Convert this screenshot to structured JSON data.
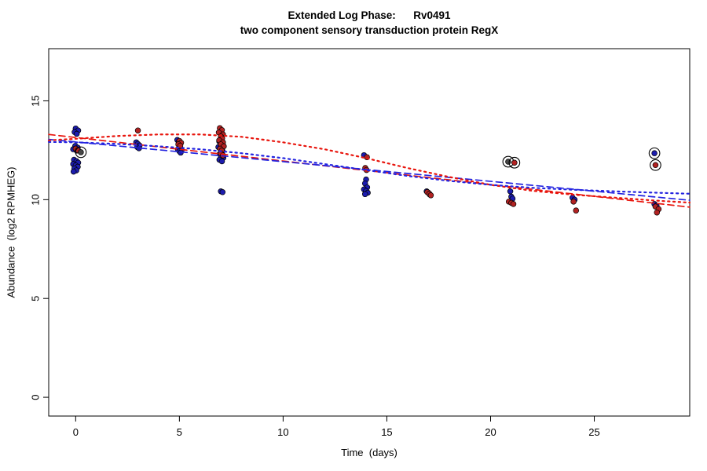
{
  "chart_data": {
    "type": "scatter",
    "title": "Extended Log Phase:      Rv0491",
    "subtitle": "two component sensory transduction protein RegX",
    "xlabel": "Time  (days)",
    "ylabel": "Abundance  (log2 RPMHEG)",
    "xlim": [
      -1.3,
      29.6
    ],
    "ylim": [
      -0.95,
      17.64
    ],
    "xticks": [
      0,
      5,
      10,
      15,
      20,
      25
    ],
    "yticks": [
      0,
      5,
      10,
      15
    ],
    "grid": false,
    "legend": "none",
    "series": [
      {
        "name": "blue-condition",
        "color": "#1c1cae",
        "marker": "filled-circle",
        "points": [
          [
            0.0,
            13.6
          ],
          [
            0.12,
            13.5
          ],
          [
            -0.05,
            13.42
          ],
          [
            0.05,
            13.33
          ],
          [
            -0.02,
            12.72
          ],
          [
            0.1,
            12.63
          ],
          [
            -0.12,
            12.55
          ],
          [
            0.05,
            12.48
          ],
          [
            -0.08,
            12.02
          ],
          [
            0.04,
            11.95
          ],
          [
            0.12,
            11.87
          ],
          [
            -0.12,
            11.8
          ],
          [
            0.0,
            11.73
          ],
          [
            0.1,
            11.66
          ],
          [
            -0.06,
            11.58
          ],
          [
            0.03,
            11.48
          ],
          [
            -0.1,
            11.42
          ],
          [
            2.92,
            12.9
          ],
          [
            3.0,
            12.82
          ],
          [
            3.08,
            12.74
          ],
          [
            2.97,
            12.66
          ],
          [
            3.05,
            12.6
          ],
          [
            4.9,
            13.02
          ],
          [
            4.97,
            12.92
          ],
          [
            5.05,
            12.62
          ],
          [
            4.93,
            12.55
          ],
          [
            5.1,
            12.5
          ],
          [
            5.0,
            12.45
          ],
          [
            5.06,
            12.38
          ],
          [
            6.92,
            12.95
          ],
          [
            7.0,
            12.86
          ],
          [
            7.1,
            12.76
          ],
          [
            6.88,
            12.66
          ],
          [
            7.02,
            12.56
          ],
          [
            7.08,
            12.46
          ],
          [
            6.95,
            12.32
          ],
          [
            7.0,
            12.22
          ],
          [
            7.12,
            12.12
          ],
          [
            6.93,
            12.02
          ],
          [
            7.05,
            11.94
          ],
          [
            7.0,
            10.42
          ],
          [
            7.08,
            10.38
          ],
          [
            13.9,
            12.25
          ],
          [
            14.0,
            11.02
          ],
          [
            13.95,
            10.82
          ],
          [
            14.05,
            10.62
          ],
          [
            13.9,
            10.52
          ],
          [
            14.0,
            10.44
          ],
          [
            14.08,
            10.35
          ],
          [
            13.95,
            10.28
          ],
          [
            16.92,
            10.42
          ],
          [
            17.0,
            10.35
          ],
          [
            17.06,
            10.27
          ],
          [
            20.95,
            10.42
          ],
          [
            21.0,
            10.15
          ],
          [
            21.06,
            10.05
          ],
          [
            23.95,
            10.1
          ],
          [
            24.05,
            10.0
          ],
          [
            27.9,
            9.78
          ],
          [
            28.0,
            9.7
          ]
        ]
      },
      {
        "name": "red-condition",
        "color": "#b22222",
        "marker": "filled-circle",
        "points": [
          [
            0.0,
            12.58
          ],
          [
            0.1,
            12.5
          ],
          [
            3.0,
            13.5
          ],
          [
            5.0,
            12.97
          ],
          [
            5.08,
            12.88
          ],
          [
            4.95,
            12.8
          ],
          [
            5.04,
            12.73
          ],
          [
            6.95,
            13.62
          ],
          [
            7.05,
            13.52
          ],
          [
            6.9,
            13.4
          ],
          [
            7.1,
            13.3
          ],
          [
            7.0,
            13.2
          ],
          [
            7.06,
            13.1
          ],
          [
            6.92,
            13.0
          ],
          [
            7.1,
            12.9
          ],
          [
            7.0,
            12.8
          ],
          [
            7.14,
            12.7
          ],
          [
            6.96,
            12.58
          ],
          [
            7.04,
            12.48
          ],
          [
            7.0,
            12.34
          ],
          [
            7.1,
            12.24
          ],
          [
            14.04,
            12.15
          ],
          [
            13.96,
            11.6
          ],
          [
            14.02,
            11.5
          ],
          [
            16.95,
            10.38
          ],
          [
            17.05,
            10.3
          ],
          [
            17.12,
            10.22
          ],
          [
            20.88,
            9.9
          ],
          [
            21.0,
            9.84
          ],
          [
            21.1,
            9.78
          ],
          [
            24.0,
            9.9
          ],
          [
            24.12,
            9.45
          ],
          [
            27.95,
            9.65
          ],
          [
            28.1,
            9.52
          ],
          [
            28.02,
            9.35
          ]
        ]
      }
    ],
    "outlined_points": {
      "description": "points flagged with a black open-circle overlay",
      "ring_color": "#000000",
      "points": [
        {
          "x": 0.25,
          "y": 12.4,
          "color": "#474747"
        },
        {
          "x": 20.85,
          "y": 11.92,
          "color": "#474747"
        },
        {
          "x": 21.15,
          "y": 11.87,
          "color": "#b22222"
        },
        {
          "x": 27.9,
          "y": 12.35,
          "color": "#1c1cae"
        },
        {
          "x": 27.95,
          "y": 11.75,
          "color": "#b22222"
        }
      ]
    },
    "trend_lines": [
      {
        "name": "red-linear-fit",
        "color": "#e8150d",
        "style": "dashed",
        "points": [
          [
            -1.3,
            13.3
          ],
          [
            29.6,
            9.62
          ]
        ]
      },
      {
        "name": "blue-linear-fit",
        "color": "#2424e0",
        "style": "dashed",
        "points": [
          [
            -1.3,
            13.05
          ],
          [
            29.6,
            9.97
          ]
        ]
      },
      {
        "name": "red-smooth-fit",
        "color": "#e8150d",
        "style": "dotted",
        "points": [
          [
            -1.3,
            13.0
          ],
          [
            0,
            13.08
          ],
          [
            2,
            13.22
          ],
          [
            4,
            13.3
          ],
          [
            6,
            13.3
          ],
          [
            8,
            13.18
          ],
          [
            10,
            12.9
          ],
          [
            12,
            12.55
          ],
          [
            14,
            12.1
          ],
          [
            16,
            11.6
          ],
          [
            18,
            11.15
          ],
          [
            20,
            10.75
          ],
          [
            22,
            10.45
          ],
          [
            24,
            10.25
          ],
          [
            26,
            10.1
          ],
          [
            28,
            9.95
          ],
          [
            29.6,
            9.85
          ]
        ]
      },
      {
        "name": "blue-smooth-fit",
        "color": "#2424e0",
        "style": "dotted",
        "points": [
          [
            -1.3,
            12.92
          ],
          [
            0,
            12.9
          ],
          [
            2,
            12.82
          ],
          [
            4,
            12.7
          ],
          [
            6,
            12.55
          ],
          [
            8,
            12.35
          ],
          [
            10,
            12.1
          ],
          [
            12,
            11.8
          ],
          [
            14,
            11.5
          ],
          [
            16,
            11.2
          ],
          [
            18,
            10.95
          ],
          [
            20,
            10.75
          ],
          [
            22,
            10.6
          ],
          [
            24,
            10.5
          ],
          [
            26,
            10.42
          ],
          [
            28,
            10.35
          ],
          [
            29.6,
            10.3
          ]
        ]
      }
    ]
  }
}
